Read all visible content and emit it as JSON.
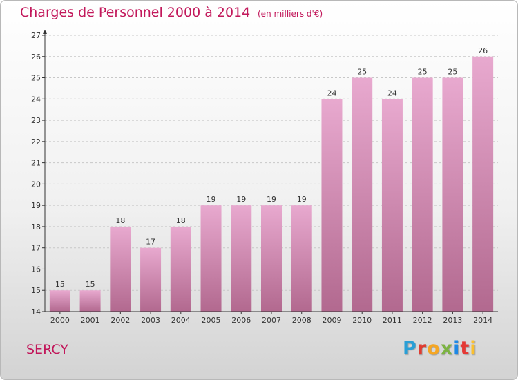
{
  "header": {
    "title": "Charges de Personnel 2000 à 2014",
    "unit": "(en milliers d'€)"
  },
  "footer": {
    "commune": "SERCY",
    "logo_text": "Proxiti",
    "logo_colors": [
      "#2a9fd6",
      "#e03c31",
      "#f5a623",
      "#7cb342",
      "#1e88e5",
      "#e53935",
      "#fbc02d"
    ]
  },
  "colors": {
    "bar_top": "#e8a9cf",
    "bar_bottom": "#b2698f",
    "axis": "#333333",
    "grid": "#c8c8c8",
    "title": "#c2185b"
  },
  "chart_data": {
    "type": "bar",
    "title": "Charges de Personnel 2000 à 2014",
    "subtitle": "(en milliers d'€)",
    "categories": [
      "2000",
      "2001",
      "2002",
      "2003",
      "2004",
      "2005",
      "2006",
      "2007",
      "2008",
      "2009",
      "2010",
      "2011",
      "2012",
      "2013",
      "2014"
    ],
    "values": [
      15,
      15,
      18,
      17,
      18,
      19,
      19,
      19,
      19,
      24,
      25,
      24,
      25,
      25,
      26
    ],
    "ylim": [
      14,
      27
    ],
    "yticks": [
      14,
      15,
      16,
      17,
      18,
      19,
      20,
      21,
      22,
      23,
      24,
      25,
      26,
      27
    ],
    "grid": true,
    "data_labels": true
  }
}
